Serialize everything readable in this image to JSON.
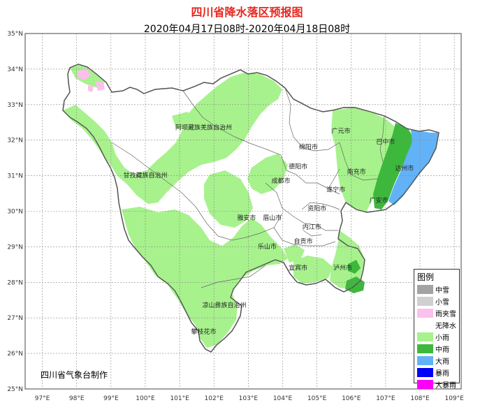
{
  "title": "四川省降水落区预报图",
  "subtitle": "2020年04月17日08时-2020年04月18日08时",
  "credit": "四川省气象台制作",
  "lat_ticks": [
    "35°N",
    "34°N",
    "33°N",
    "32°N",
    "31°N",
    "30°N",
    "29°N",
    "28°N",
    "27°N",
    "26°N",
    "25°N"
  ],
  "lon_ticks": [
    "97°E",
    "98°E",
    "99°E",
    "100°E",
    "101°E",
    "102°E",
    "103°E",
    "104°E",
    "105°E",
    "106°E",
    "107°E",
    "108°E",
    "109°E"
  ],
  "cities": [
    {
      "name": "阿坝藏族羌族自治州",
      "lon": 101.7,
      "lat": 32.3
    },
    {
      "name": "甘孜藏族自治州",
      "lon": 100.0,
      "lat": 30.95
    },
    {
      "name": "绵阳市",
      "lon": 104.75,
      "lat": 31.75
    },
    {
      "name": "广元市",
      "lon": 105.7,
      "lat": 32.2
    },
    {
      "name": "巴中市",
      "lon": 107.0,
      "lat": 31.9
    },
    {
      "name": "达州市",
      "lon": 107.55,
      "lat": 31.15
    },
    {
      "name": "南充市",
      "lon": 106.15,
      "lat": 31.05
    },
    {
      "name": "德阳市",
      "lon": 104.45,
      "lat": 31.2
    },
    {
      "name": "成都市",
      "lon": 103.95,
      "lat": 30.8
    },
    {
      "name": "遂宁市",
      "lon": 105.55,
      "lat": 30.55
    },
    {
      "name": "广安市",
      "lon": 106.8,
      "lat": 30.25
    },
    {
      "name": "资阳市",
      "lon": 105.0,
      "lat": 30.02
    },
    {
      "name": "眉山市",
      "lon": 103.7,
      "lat": 29.75
    },
    {
      "name": "雅安市",
      "lon": 102.95,
      "lat": 29.75
    },
    {
      "name": "内江市",
      "lon": 104.85,
      "lat": 29.5
    },
    {
      "name": "自贡市",
      "lon": 104.6,
      "lat": 29.1
    },
    {
      "name": "乐山市",
      "lon": 103.55,
      "lat": 28.95
    },
    {
      "name": "宜宾市",
      "lon": 104.45,
      "lat": 28.35
    },
    {
      "name": "泸州市",
      "lon": 105.75,
      "lat": 28.35
    },
    {
      "name": "凉山彝族自治州",
      "lon": 102.3,
      "lat": 27.3
    },
    {
      "name": "攀枝花市",
      "lon": 101.7,
      "lat": 26.55
    }
  ],
  "legend": {
    "title": "图例",
    "items": [
      {
        "label": "中雪",
        "color": "#a3a3a3"
      },
      {
        "label": "小雪",
        "color": "#d0d0d0"
      },
      {
        "label": "雨夹雪",
        "color": "#fcc0ec"
      },
      {
        "label": "无降水",
        "color": "#ffffff"
      },
      {
        "label": "小雨",
        "color": "#a7f28d"
      },
      {
        "label": "中雨",
        "color": "#3db83d"
      },
      {
        "label": "大雨",
        "color": "#62b2f7"
      },
      {
        "label": "暴雨",
        "color": "#0000fa"
      },
      {
        "label": "大暴雨",
        "color": "#fa00fa"
      }
    ]
  },
  "colors": {
    "light_rain": "#a7f28d",
    "moderate_rain": "#3db83d",
    "heavy_rain": "#62b2f7",
    "sleet": "#fcc0ec",
    "title": "#e8251c"
  }
}
